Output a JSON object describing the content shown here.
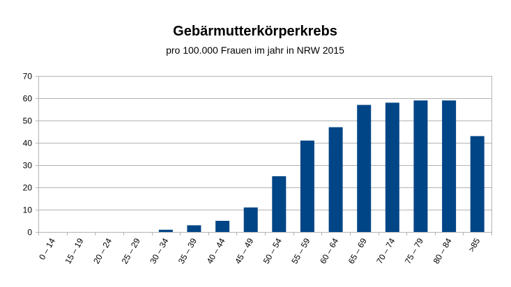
{
  "chart_data": {
    "type": "bar",
    "title": "Gebärmutterkörperkrebs",
    "subtitle": "pro 100.000 Frauen im jahr in NRW 2015",
    "xlabel": "",
    "ylabel": "",
    "categories": [
      "0 – 14",
      "15 – 19",
      "20 – 24",
      "25 – 29",
      "30 – 34",
      "35 – 39",
      "40 – 44",
      "45 – 49",
      "50 – 54",
      "55 – 59",
      "60 – 64",
      "65 – 69",
      "70 – 74",
      "75 – 79",
      "80 – 84",
      ">85"
    ],
    "values": [
      0,
      0,
      0,
      0,
      1,
      3,
      5,
      11,
      25,
      41,
      47,
      57,
      58,
      59,
      59,
      43
    ],
    "ylim": [
      0,
      70
    ],
    "yticks": [
      0,
      10,
      20,
      30,
      40,
      50,
      60,
      70
    ],
    "grid": true,
    "legend": "none",
    "bar_color": "#004586"
  }
}
